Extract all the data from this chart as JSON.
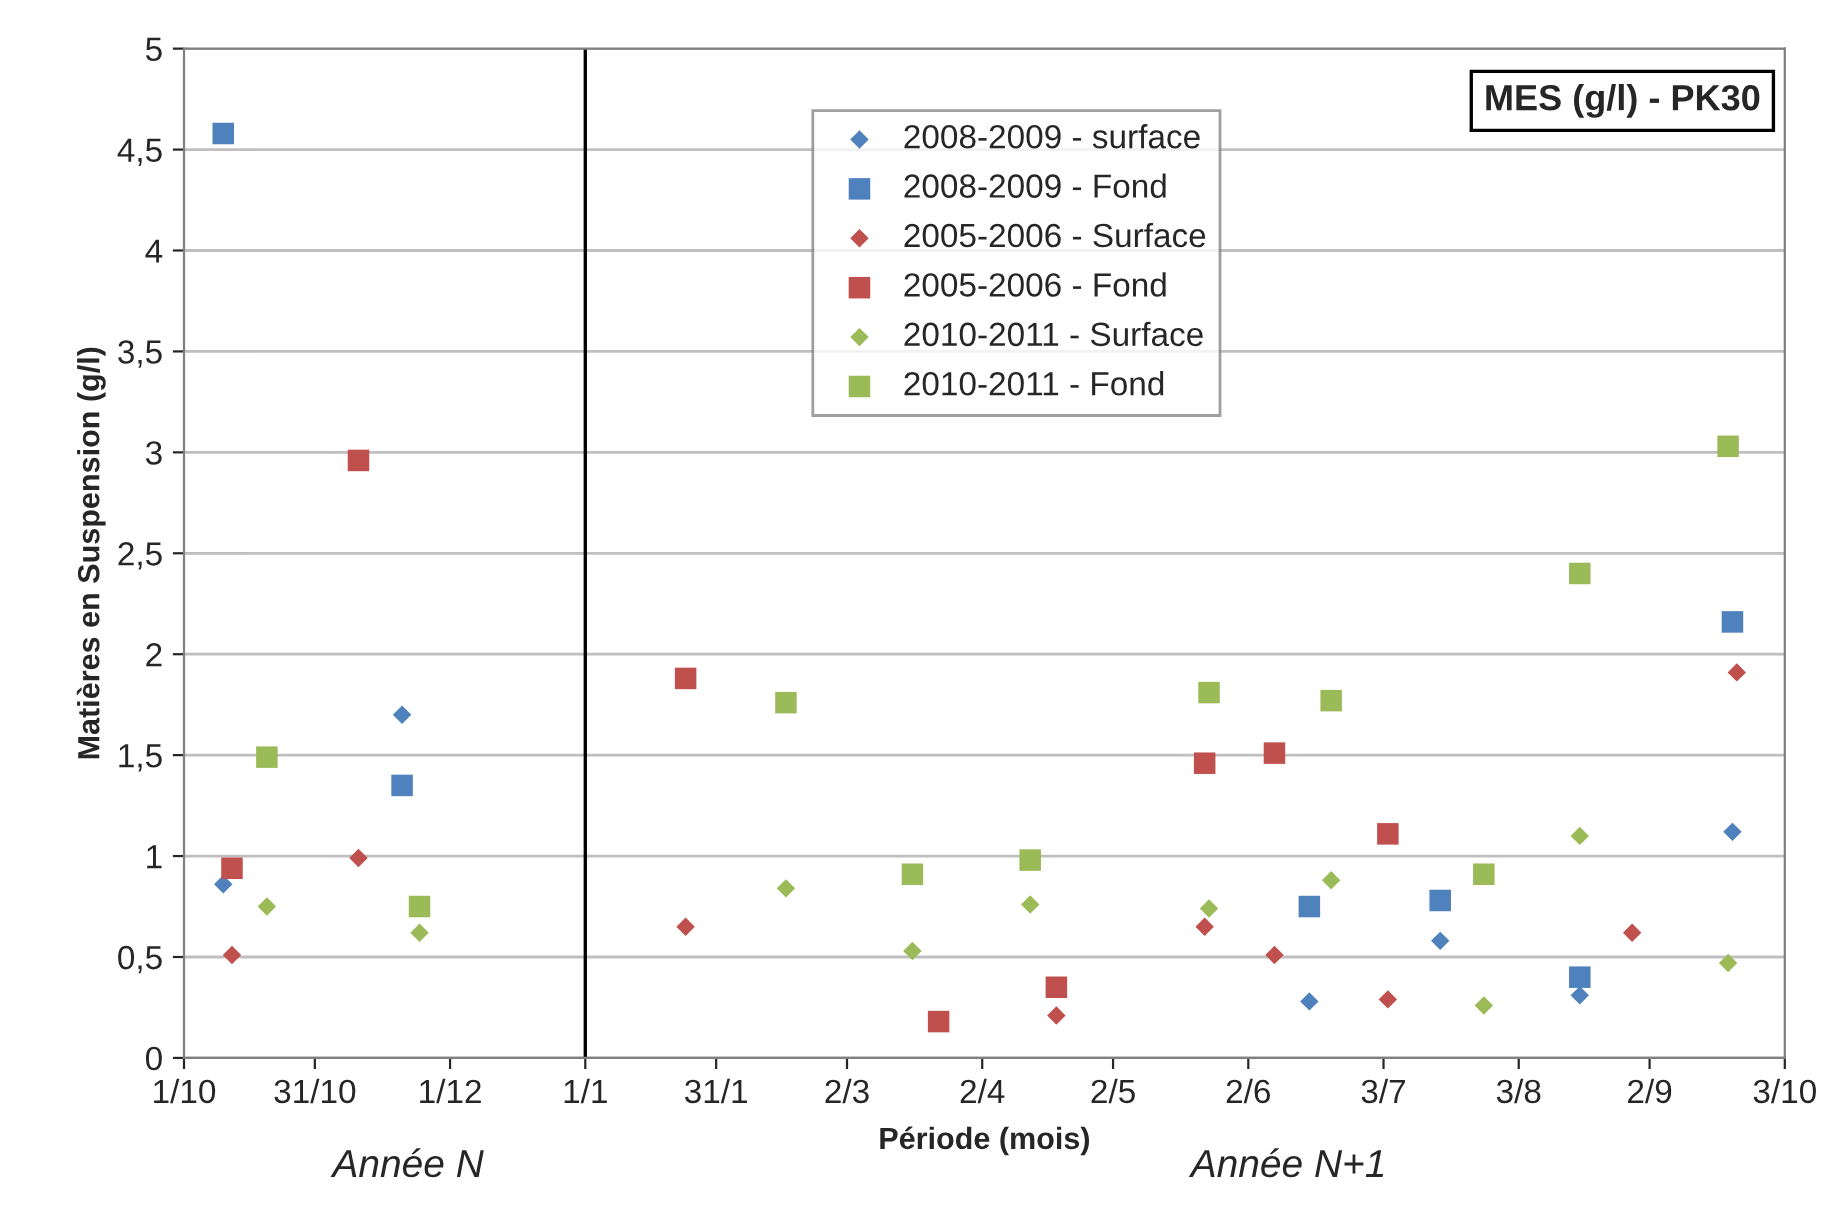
{
  "chart_data": {
    "type": "scatter",
    "xlabel": "Période (mois)",
    "ylabel": "Matières en Suspension (g/l)",
    "annotations": [
      "MES (g/l) - PK30",
      "Année N",
      "Année N+1"
    ],
    "xlim": [
      "2008-10-01",
      "2009-10-03"
    ],
    "xticks": [
      {
        "value": "2008-10-01",
        "label": "1/10"
      },
      {
        "value": "2008-10-31",
        "label": "31/10"
      },
      {
        "value": "2008-12-01",
        "label": "1/12"
      },
      {
        "value": "2009-01-01",
        "label": "1/1"
      },
      {
        "value": "2009-01-31",
        "label": "31/1"
      },
      {
        "value": "2009-03-02",
        "label": "2/3"
      },
      {
        "value": "2009-04-02",
        "label": "2/4"
      },
      {
        "value": "2009-05-02",
        "label": "2/5"
      },
      {
        "value": "2009-06-02",
        "label": "2/6"
      },
      {
        "value": "2009-07-03",
        "label": "3/7"
      },
      {
        "value": "2009-08-03",
        "label": "3/8"
      },
      {
        "value": "2009-09-02",
        "label": "2/9"
      },
      {
        "value": "2009-10-03",
        "label": "3/10"
      }
    ],
    "ylim": [
      0,
      5
    ],
    "yticks": [
      {
        "value": 0,
        "label": "0"
      },
      {
        "value": 0.5,
        "label": "0,5"
      },
      {
        "value": 1,
        "label": "1"
      },
      {
        "value": 1.5,
        "label": "1,5"
      },
      {
        "value": 2,
        "label": "2"
      },
      {
        "value": 2.5,
        "label": "2,5"
      },
      {
        "value": 3,
        "label": "3"
      },
      {
        "value": 3.5,
        "label": "3,5"
      },
      {
        "value": 4,
        "label": "4"
      },
      {
        "value": 4.5,
        "label": "4,5"
      },
      {
        "value": 5,
        "label": "5"
      }
    ],
    "grid": "y",
    "legend": "top",
    "ref_lines": [
      {
        "axis": "x",
        "value": "2009-01-01",
        "color": "#000000"
      }
    ],
    "series": [
      {
        "name": "2008-2009 - surface",
        "color": "#4f81bd",
        "marker": "diamond",
        "x": [
          "2008-10-10",
          "2008-11-20",
          "2009-06-16",
          "2009-07-16",
          "2009-08-17",
          "2009-09-21"
        ],
        "values": [
          0.86,
          1.7,
          0.28,
          0.58,
          0.31,
          1.12
        ]
      },
      {
        "name": "2008-2009 - Fond",
        "color": "#4f81bd",
        "marker": "square",
        "x": [
          "2008-10-10",
          "2008-11-20",
          "2009-06-16",
          "2009-07-16",
          "2009-08-17",
          "2009-09-21"
        ],
        "values": [
          4.58,
          1.35,
          0.75,
          0.78,
          0.4,
          2.16
        ]
      },
      {
        "name": "2005-2006 - Surface",
        "color": "#c0504d",
        "marker": "diamond",
        "x": [
          "2008-10-12",
          "2008-11-10",
          "2009-01-24",
          "2009-04-19",
          "2009-05-23",
          "2009-06-08",
          "2009-07-04",
          "2009-08-29",
          "2009-09-22"
        ],
        "values": [
          0.51,
          0.99,
          0.65,
          0.21,
          0.65,
          0.51,
          0.29,
          0.62,
          1.91
        ]
      },
      {
        "name": "2005-2006 - Fond",
        "color": "#c0504d",
        "marker": "square",
        "x": [
          "2008-10-12",
          "2008-11-10",
          "2009-01-24",
          "2009-03-23",
          "2009-04-19",
          "2009-05-23",
          "2009-06-08",
          "2009-07-04"
        ],
        "values": [
          0.94,
          2.96,
          1.88,
          0.18,
          0.35,
          1.46,
          1.51,
          1.11
        ]
      },
      {
        "name": "2010-2011 - Surface",
        "color": "#9bbb59",
        "marker": "diamond",
        "x": [
          "2008-10-20",
          "2008-11-24",
          "2009-02-16",
          "2009-03-17",
          "2009-04-13",
          "2009-05-24",
          "2009-06-21",
          "2009-07-26",
          "2009-08-17",
          "2009-09-20"
        ],
        "values": [
          0.75,
          0.62,
          0.84,
          0.53,
          0.76,
          0.74,
          0.88,
          0.26,
          1.1,
          0.47
        ]
      },
      {
        "name": "2010-2011 - Fond",
        "color": "#9bbb59",
        "marker": "square",
        "x": [
          "2008-10-20",
          "2008-11-24",
          "2009-02-16",
          "2009-03-17",
          "2009-04-13",
          "2009-05-24",
          "2009-06-21",
          "2009-07-26",
          "2009-08-17",
          "2009-09-20"
        ],
        "values": [
          1.49,
          0.75,
          1.76,
          0.91,
          0.98,
          1.81,
          1.77,
          0.91,
          2.4,
          3.03
        ]
      }
    ]
  }
}
